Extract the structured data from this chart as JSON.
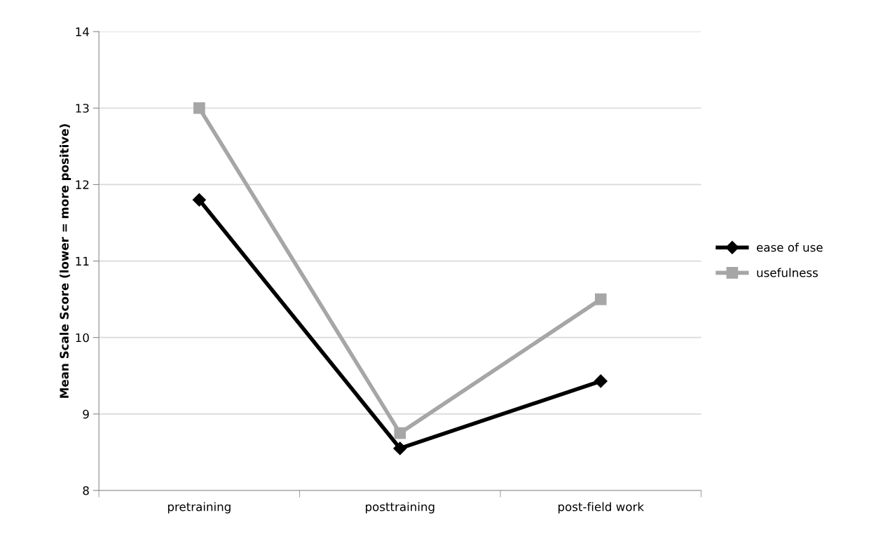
{
  "chart_data": {
    "type": "line",
    "ylabel": "Mean Scale Score (lower = more positive)",
    "categories": [
      "pretraining",
      "posttraining",
      "post-field work"
    ],
    "series": [
      {
        "name": "ease of use",
        "color": "#000000",
        "marker": "diamond",
        "values": [
          11.8,
          8.55,
          9.43
        ]
      },
      {
        "name": "usefulness",
        "color": "#a6a6a6",
        "marker": "square",
        "values": [
          13.0,
          8.75,
          10.5
        ]
      }
    ],
    "ylim": [
      8,
      14
    ],
    "yticks": [
      8,
      9,
      10,
      11,
      12,
      13,
      14
    ],
    "grid": "y",
    "legend": "right",
    "line_style": "solid"
  }
}
